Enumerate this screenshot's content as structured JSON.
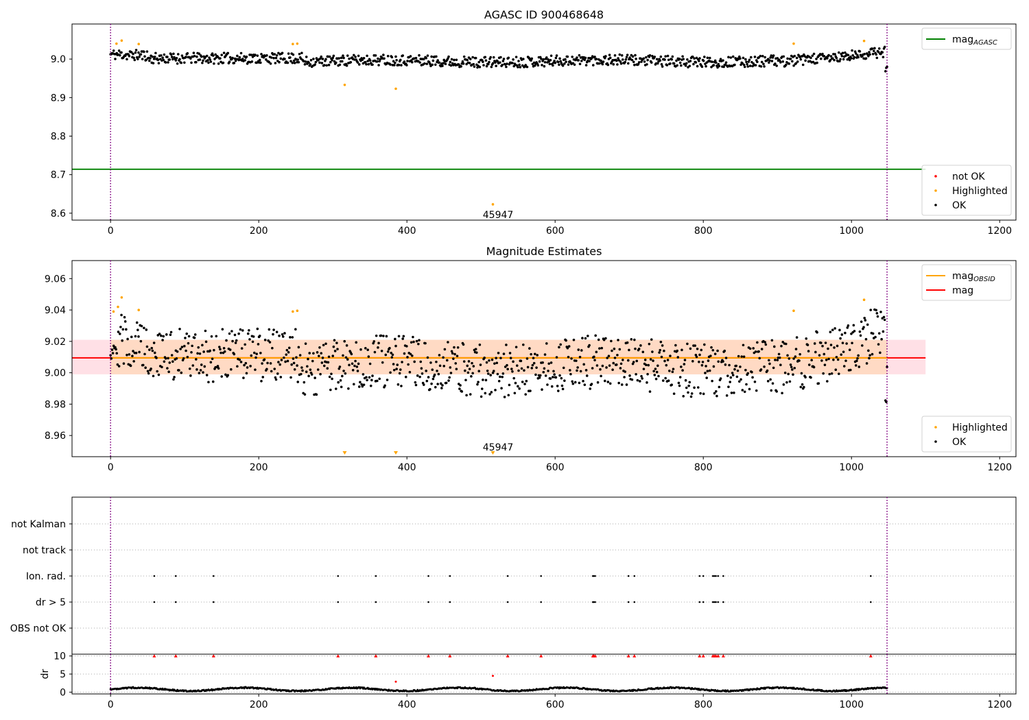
{
  "chart_data": [
    {
      "panel": "top",
      "type": "scatter",
      "title": "AGASC ID 900468648",
      "xlabel": "",
      "ylabel": "",
      "xlim": [
        -52,
        1222
      ],
      "ylim": [
        8.582,
        9.091
      ],
      "xticks": [
        0,
        200,
        400,
        600,
        800,
        1000,
        1200
      ],
      "yticks": [
        8.6,
        8.7,
        8.8,
        8.9,
        9.0
      ],
      "ytick_labels": [
        "8.6",
        "8.7",
        "8.8",
        "8.9",
        "9.0"
      ],
      "vlines": [
        0,
        1048
      ],
      "hlines": [
        {
          "name": "mag_AGASC",
          "y": 8.714,
          "x_range": [
            -52,
            1100
          ],
          "color": "#008000"
        }
      ],
      "annotations": [
        {
          "text": "45947",
          "x": 523,
          "y": 8.598
        }
      ],
      "legends": [
        {
          "position": "top-right",
          "entries": [
            {
              "label": "mag",
              "sub": "AGASC",
              "kind": "line",
              "color": "#008000"
            }
          ]
        },
        {
          "position": "bottom-right",
          "entries": [
            {
              "label": "not OK",
              "kind": "dot",
              "color": "#ff0000"
            },
            {
              "label": "Highlighted",
              "kind": "dot",
              "color": "#ffa500"
            },
            {
              "label": "OK",
              "kind": "dot",
              "color": "#000000"
            }
          ]
        }
      ],
      "series": [
        {
          "name": "OK",
          "color": "#000000",
          "profile": {
            "x_range": [
              0,
              1048
            ],
            "count": 1000
          }
        },
        {
          "name": "Highlighted",
          "color": "#ffa500",
          "x": [
            8,
            15,
            38,
            246,
            252,
            316,
            385,
            516,
            922,
            1017
          ],
          "y": [
            9.04,
            9.048,
            9.039,
            9.039,
            9.04,
            8.933,
            8.923,
            8.623,
            9.04,
            9.047
          ]
        }
      ]
    },
    {
      "panel": "middle",
      "type": "scatter",
      "title": "Magnitude Estimates",
      "xlabel": "",
      "ylabel": "",
      "xlim": [
        -52,
        1222
      ],
      "ylim": [
        8.9465,
        9.0715
      ],
      "xticks": [
        0,
        200,
        400,
        600,
        800,
        1000,
        1200
      ],
      "yticks": [
        8.96,
        8.98,
        9.0,
        9.02,
        9.04,
        9.06
      ],
      "ytick_labels": [
        "8.96",
        "8.98",
        "9.00",
        "9.02",
        "9.04",
        "9.06"
      ],
      "vlines": [
        0,
        1048
      ],
      "bands": [
        {
          "name": "mag range",
          "y_range": [
            8.999,
            9.021
          ],
          "x_range": [
            -52,
            1100
          ],
          "color": "#ffdde3"
        },
        {
          "name": "mag_OBSID range",
          "y_range": [
            8.999,
            9.021
          ],
          "x_range": [
            0,
            1048
          ],
          "color": "#ffd9c0"
        }
      ],
      "hlines": [
        {
          "name": "mag",
          "y": 9.0095,
          "x_range": [
            -52,
            1100
          ],
          "color": "#ff0000"
        },
        {
          "name": "mag_OBSID",
          "y": 9.0095,
          "x_range": [
            0,
            1048
          ],
          "color": "#ffa500"
        }
      ],
      "annotations": [
        {
          "text": "45947",
          "x": 523,
          "y": 8.9505
        }
      ],
      "offscale_markers": {
        "x": [
          316,
          385,
          516
        ],
        "color": "#ffa500"
      },
      "legends": [
        {
          "position": "top-right",
          "entries": [
            {
              "label": "mag",
              "sub": "OBSID",
              "kind": "line",
              "color": "#ffa500"
            },
            {
              "label": "mag",
              "kind": "line",
              "color": "#ff0000"
            }
          ]
        },
        {
          "position": "bottom-right",
          "entries": [
            {
              "label": "Highlighted",
              "kind": "dot",
              "color": "#ffa500"
            },
            {
              "label": "OK",
              "kind": "dot",
              "color": "#000000"
            }
          ]
        }
      ],
      "series": [
        {
          "name": "OK",
          "color": "#000000",
          "profile": {
            "x_range": [
              0,
              1048
            ],
            "count": 1000
          }
        },
        {
          "name": "Highlighted",
          "color": "#ffa500",
          "x": [
            4,
            10,
            15,
            38,
            246,
            252,
            922,
            1017
          ],
          "y": [
            9.039,
            9.042,
            9.048,
            9.04,
            9.039,
            9.0395,
            9.0395,
            9.0465
          ]
        }
      ]
    },
    {
      "panel": "flags",
      "type": "scatter",
      "title": "",
      "xlabel": "",
      "ylabel": "",
      "xlim": [
        -52,
        1222
      ],
      "vlines": [
        0,
        1048
      ],
      "categories": [
        "not Kalman",
        "not track",
        "Ion. rad.",
        "dr > 5",
        "OBS not OK"
      ],
      "flagged_x": {
        "Ion. rad.": [
          59,
          88,
          139,
          307,
          358,
          429,
          458,
          536,
          581,
          651,
          652,
          654,
          699,
          707,
          795,
          800,
          813,
          815,
          817,
          820,
          827,
          1026
        ],
        "dr > 5": [
          59,
          88,
          139,
          307,
          358,
          429,
          458,
          536,
          581,
          651,
          652,
          654,
          699,
          707,
          795,
          800,
          813,
          815,
          817,
          820,
          827,
          1026
        ]
      }
    },
    {
      "panel": "bottom",
      "type": "scatter",
      "title": "",
      "xlabel": "",
      "ylabel": "dr",
      "xlim": [
        -52,
        1222
      ],
      "ylim": [
        -0.5,
        10.5
      ],
      "xticks": [
        0,
        200,
        400,
        600,
        800,
        1000,
        1200
      ],
      "yticks": [
        0,
        5,
        10
      ],
      "ytick_labels": [
        "0",
        "5",
        "10"
      ],
      "vlines": [
        0,
        1048
      ],
      "capped": {
        "x": [
          59,
          88,
          139,
          307,
          358,
          429,
          458,
          536,
          581,
          651,
          652,
          654,
          699,
          707,
          795,
          800,
          813,
          815,
          817,
          820,
          827,
          1026
        ],
        "y": 10,
        "color": "#ff0000"
      },
      "series": [
        {
          "name": "dr",
          "color": "#000000",
          "profile": {
            "x_range": [
              0,
              1048
            ],
            "count": 1000
          }
        },
        {
          "name": "dr highlighted",
          "color": "#ff0000",
          "x": [
            385,
            516
          ],
          "y": [
            2.9,
            4.5
          ]
        }
      ]
    }
  ]
}
